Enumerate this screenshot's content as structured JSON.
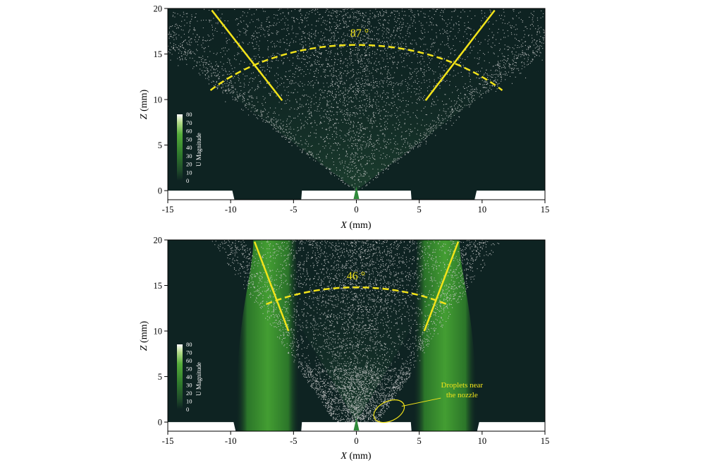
{
  "chart_data": [
    {
      "type": "scatter",
      "panel": "top",
      "xlabel_var": "X",
      "xlabel_unit": " (mm)",
      "ylabel_var": "Z",
      "ylabel_unit": " (mm)",
      "xlim": [
        -15,
        15
      ],
      "ylim": [
        -1,
        20
      ],
      "x_ticks": [
        -15,
        -10,
        -5,
        0,
        5,
        10,
        15
      ],
      "y_ticks": [
        0,
        5,
        10,
        15,
        20
      ],
      "colorbar": {
        "title": "U Magnitude",
        "ticks": [
          0,
          10,
          20,
          30,
          40,
          50,
          60,
          70,
          80
        ],
        "tick_labels": [
          "0",
          "10",
          "20",
          "30",
          "40",
          "50",
          "60",
          "70",
          "80"
        ],
        "range": [
          0,
          80
        ],
        "colors": [
          "#0e2322",
          "#2c6a2d",
          "#3f9a2e",
          "#a8d67a",
          "#ffffff"
        ]
      },
      "spray_angle_deg": 87,
      "angle_label": "87 °",
      "edge_lines": [
        {
          "x": [
            -11.5,
            -5.9
          ],
          "y": [
            19.8,
            9.9
          ]
        },
        {
          "x": [
            11.0,
            5.5
          ],
          "y": [
            19.8,
            9.9
          ]
        }
      ],
      "angle_arc": {
        "center": [
          0,
          0
        ],
        "radius": 16,
        "from_deg": 136.5,
        "to_deg": 43.5
      },
      "wall_openings": [
        [
          -9.7,
          -4.5
        ],
        [
          4.5,
          9.4
        ]
      ],
      "gas_jets": [],
      "annotation": null,
      "colors": {
        "background": "#0e2322",
        "droplet": "#c9c9c9",
        "line": "#f2e31a",
        "jet": "#3c9a2c"
      }
    },
    {
      "type": "scatter",
      "panel": "bottom",
      "xlabel_var": "X",
      "xlabel_unit": " (mm)",
      "ylabel_var": "Z",
      "ylabel_unit": " (mm)",
      "xlim": [
        -15,
        15
      ],
      "ylim": [
        -1,
        20
      ],
      "x_ticks": [
        -15,
        -10,
        -5,
        0,
        5,
        10,
        15
      ],
      "y_ticks": [
        0,
        5,
        10,
        15,
        20
      ],
      "colorbar": {
        "title": "U Magnitude",
        "ticks": [
          0,
          10,
          20,
          30,
          40,
          50,
          60,
          70,
          80
        ],
        "tick_labels": [
          "0",
          "10",
          "20",
          "30",
          "40",
          "50",
          "60",
          "70",
          "80"
        ],
        "range": [
          0,
          80
        ],
        "colors": [
          "#0e2322",
          "#2c6a2d",
          "#3f9a2e",
          "#a8d67a",
          "#ffffff"
        ]
      },
      "spray_angle_deg": 46,
      "angle_label": "46 °",
      "edge_lines": [
        {
          "x": [
            -8.1,
            -5.4
          ],
          "y": [
            19.8,
            10.0
          ]
        },
        {
          "x": [
            8.1,
            5.4
          ],
          "y": [
            19.8,
            10.0
          ]
        }
      ],
      "angle_arc": {
        "center": [
          0,
          0
        ],
        "radius": 14.8,
        "from_deg": 119,
        "to_deg": 61
      },
      "wall_openings": [
        [
          -9.6,
          -4.5
        ],
        [
          4.5,
          9.6
        ]
      ],
      "gas_jets": [
        {
          "bottom": [
            -9.6,
            -4.5
          ],
          "top": [
            -8.2,
            -4.8
          ]
        },
        {
          "bottom": [
            4.5,
            9.6
          ],
          "top": [
            4.8,
            8.2
          ]
        }
      ],
      "annotation": {
        "text_line1": "Droplets near",
        "text_line2": "the nozzle",
        "ellipse_center": [
          2.6,
          1.2
        ],
        "text_at": [
          8.4,
          3.8
        ]
      },
      "colors": {
        "background": "#0e2322",
        "droplet": "#c9c9c9",
        "line": "#f2e31a",
        "jet": "#3c9a2c"
      }
    }
  ]
}
